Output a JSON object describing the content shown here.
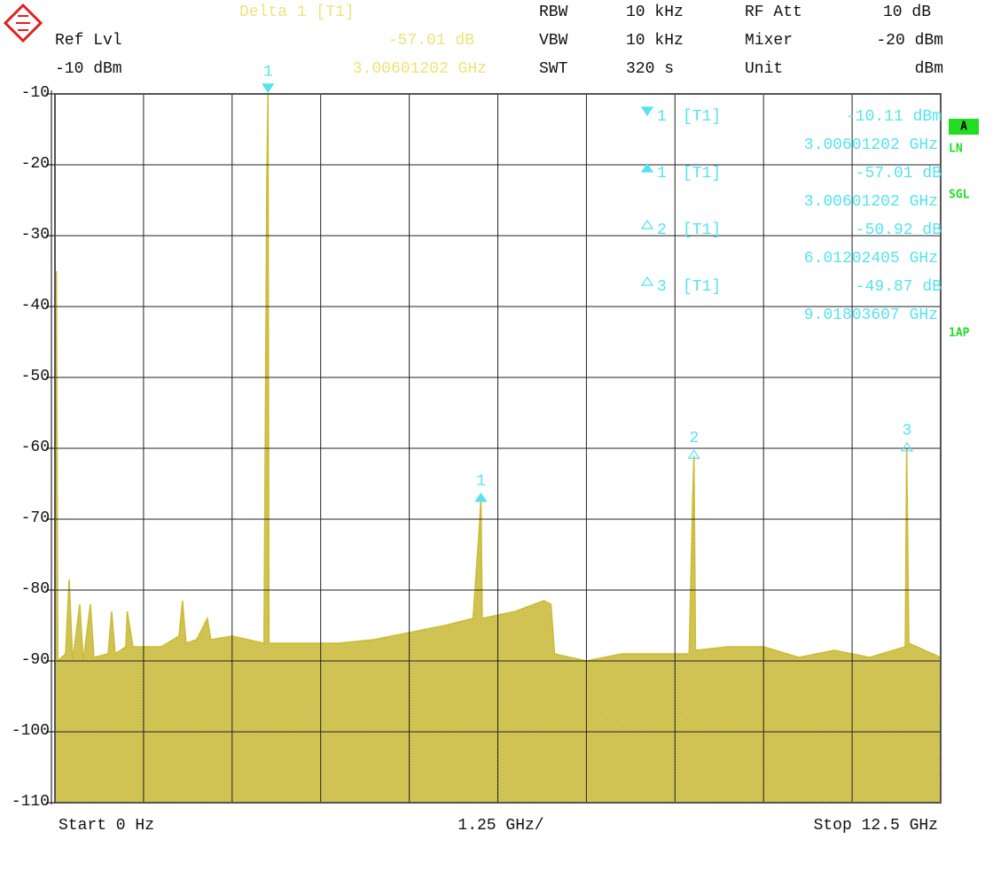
{
  "chart_data": {
    "type": "spectrum",
    "header": {
      "delta_title": "Delta 1 [T1]",
      "delta_value": "-57.01 dB",
      "delta_freq": "3.00601202 GHz",
      "ref_label": "Ref Lvl",
      "ref_value": "-10 dBm",
      "rbw_label": "RBW",
      "rbw_value": "10 kHz",
      "vbw_label": "VBW",
      "vbw_value": "10 kHz",
      "swt_label": "SWT",
      "swt_value": "320 s",
      "att_label": "RF Att",
      "att_value": "10 dB",
      "mixer_label": "Mixer",
      "mixer_value": "-20 dBm",
      "unit_label": "Unit",
      "unit_value": "dBm"
    },
    "side_labels": {
      "trace": "A",
      "ln": "LN",
      "sgl": "SGL",
      "ap": "1AP"
    },
    "footer": {
      "start": "Start 0 Hz",
      "span": "1.25 GHz/",
      "stop": "Stop 12.5 GHz"
    },
    "xlim": [
      0,
      12.5
    ],
    "ylim": [
      -110,
      -10
    ],
    "yticks": [
      -10,
      -20,
      -30,
      -40,
      -50,
      -60,
      -70,
      -80,
      -90,
      -100,
      -110
    ],
    "xgrid": [
      0,
      1.25,
      2.5,
      3.75,
      5,
      6.25,
      7.5,
      8.75,
      10,
      11.25,
      12.5
    ],
    "grid": true,
    "color": "#ccbb33",
    "marker_color": "#55e3f0",
    "x": [
      0,
      0.02,
      0.04,
      0.15,
      0.2,
      0.25,
      0.35,
      0.4,
      0.5,
      0.55,
      0.75,
      0.8,
      0.85,
      1.0,
      1.02,
      1.1,
      1.5,
      1.75,
      1.8,
      1.85,
      2.0,
      2.15,
      2.2,
      2.5,
      2.95,
      2.99,
      3.006,
      3.02,
      3.5,
      4.0,
      4.5,
      5.0,
      5.5,
      5.9,
      5.99,
      6.012,
      6.03,
      6.5,
      6.9,
      7.0,
      7.05,
      7.5,
      8.0,
      8.5,
      8.95,
      9.0,
      9.018,
      9.04,
      9.5,
      10.0,
      10.5,
      11.0,
      11.5,
      12.0,
      12.02,
      12.05,
      12.5
    ],
    "values": [
      -90,
      -35,
      -90,
      -89,
      -78.5,
      -90,
      -82,
      -90,
      -82,
      -89.5,
      -89,
      -83,
      -89,
      -88,
      -83,
      -88,
      -88,
      -86.5,
      -81.5,
      -87.5,
      -87,
      -84,
      -87,
      -86.5,
      -87.5,
      -22,
      -10.11,
      -87.5,
      -87.5,
      -87.5,
      -87,
      -86,
      -85,
      -84,
      -71,
      -67.12,
      -84,
      -83,
      -81.5,
      -82,
      -89,
      -90,
      -89,
      -89,
      -89,
      -67,
      -61.03,
      -88.5,
      -88,
      -88,
      -89.5,
      -88.5,
      -89.5,
      -88,
      -59.98,
      -87.5,
      -89.5
    ],
    "markers": [
      {
        "symbol": "1",
        "trace": "[T1]",
        "value": -10.11,
        "value_label": "-10.11 dBm",
        "freq": 3.00601202,
        "freq_label": "3.00601202 GHz"
      },
      {
        "symbol": "1",
        "trace": "[T1]",
        "value": -57.01,
        "value_label": "-57.01 dB",
        "freq": 3.00601202,
        "freq_label": "3.00601202 GHz"
      },
      {
        "symbol": "2",
        "trace": "[T1]",
        "value": -50.92,
        "value_label": "-50.92 dB",
        "freq": 6.01202405,
        "freq_label": "6.01202405 GHz"
      },
      {
        "symbol": "3",
        "trace": "[T1]",
        "value": -49.87,
        "value_label": "-49.87 dB",
        "freq": 9.01803607,
        "freq_label": "9.01803607 GHz"
      }
    ]
  }
}
